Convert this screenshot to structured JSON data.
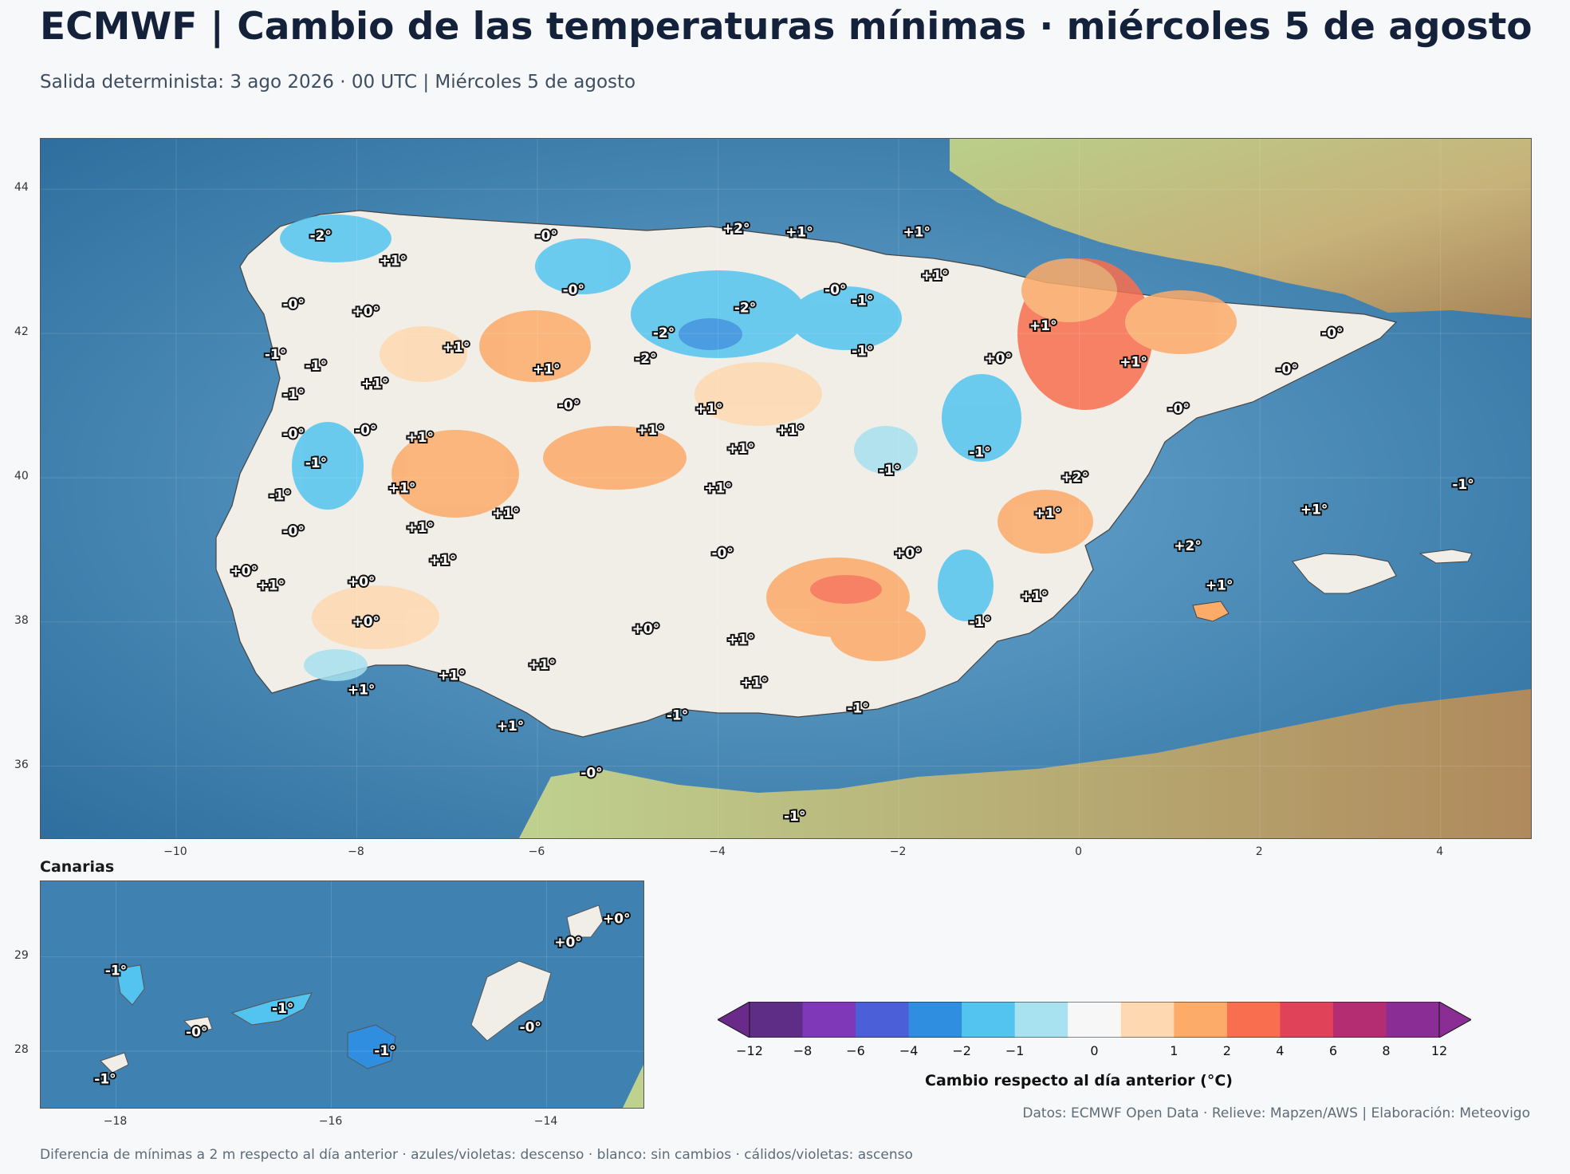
{
  "title": "ECMWF | Cambio de las temperaturas mínimas · miércoles 5 de agosto",
  "subtitle": "Salida determinista: 3 ago 2026 · 00 UTC  |  Miércoles 5 de agosto",
  "main_map": {
    "extent": {
      "lon": [
        -11.5,
        5.0
      ],
      "lat": [
        35.0,
        44.7
      ]
    },
    "lon_ticks": [
      -10,
      -8,
      -6,
      -4,
      -2,
      0,
      2,
      4
    ],
    "lat_ticks": [
      36,
      38,
      40,
      42,
      44
    ],
    "labels": [
      {
        "text": "-2°",
        "lon": -8.4,
        "lat": 43.35
      },
      {
        "text": "-0°",
        "lon": -5.9,
        "lat": 43.35
      },
      {
        "text": "+2°",
        "lon": -3.8,
        "lat": 43.45
      },
      {
        "text": "+1°",
        "lon": -3.1,
        "lat": 43.4
      },
      {
        "text": "+1°",
        "lon": -1.8,
        "lat": 43.4
      },
      {
        "text": "+1°",
        "lon": -7.6,
        "lat": 43.0
      },
      {
        "text": "+1°",
        "lon": -1.6,
        "lat": 42.8
      },
      {
        "text": "-0°",
        "lon": -5.6,
        "lat": 42.6
      },
      {
        "text": "-0°",
        "lon": -2.7,
        "lat": 42.6
      },
      {
        "text": "-1°",
        "lon": -2.4,
        "lat": 42.45
      },
      {
        "text": "-0°",
        "lon": -8.7,
        "lat": 42.4
      },
      {
        "text": "+0°",
        "lon": -7.9,
        "lat": 42.3
      },
      {
        "text": "-2°",
        "lon": -3.7,
        "lat": 42.35
      },
      {
        "text": "+1°",
        "lon": -0.4,
        "lat": 42.1
      },
      {
        "text": "-0°",
        "lon": 2.8,
        "lat": 42.0
      },
      {
        "text": "-2°",
        "lon": -4.6,
        "lat": 42.0
      },
      {
        "text": "+1°",
        "lon": -6.9,
        "lat": 41.8
      },
      {
        "text": "-1°",
        "lon": -2.4,
        "lat": 41.75
      },
      {
        "text": "-1°",
        "lon": -8.9,
        "lat": 41.7
      },
      {
        "text": "-2°",
        "lon": -4.8,
        "lat": 41.65
      },
      {
        "text": "+0°",
        "lon": -0.9,
        "lat": 41.65
      },
      {
        "text": "+1°",
        "lon": 0.6,
        "lat": 41.6
      },
      {
        "text": "-1°",
        "lon": -8.45,
        "lat": 41.55
      },
      {
        "text": "+1°",
        "lon": -5.9,
        "lat": 41.5
      },
      {
        "text": "-0°",
        "lon": 2.3,
        "lat": 41.5
      },
      {
        "text": "+1°",
        "lon": -7.8,
        "lat": 41.3
      },
      {
        "text": "-1°",
        "lon": -8.7,
        "lat": 41.15
      },
      {
        "text": "-0°",
        "lon": -5.65,
        "lat": 41.0
      },
      {
        "text": "+1°",
        "lon": -4.1,
        "lat": 40.95
      },
      {
        "text": "-0°",
        "lon": 1.1,
        "lat": 40.95
      },
      {
        "text": "-0°",
        "lon": -7.9,
        "lat": 40.65
      },
      {
        "text": "+1°",
        "lon": -4.75,
        "lat": 40.65
      },
      {
        "text": "+1°",
        "lon": -3.2,
        "lat": 40.65
      },
      {
        "text": "-0°",
        "lon": -8.7,
        "lat": 40.6
      },
      {
        "text": "+1°",
        "lon": -7.3,
        "lat": 40.55
      },
      {
        "text": "+1°",
        "lon": -3.75,
        "lat": 40.4
      },
      {
        "text": "-1°",
        "lon": -1.1,
        "lat": 40.35
      },
      {
        "text": "-1°",
        "lon": -8.45,
        "lat": 40.2
      },
      {
        "text": "-1°",
        "lon": -2.1,
        "lat": 40.1
      },
      {
        "text": "+2°",
        "lon": -0.05,
        "lat": 40.0
      },
      {
        "text": "-1°",
        "lon": 4.25,
        "lat": 39.9
      },
      {
        "text": "+1°",
        "lon": -7.5,
        "lat": 39.85
      },
      {
        "text": "+1°",
        "lon": -4.0,
        "lat": 39.85
      },
      {
        "text": "-1°",
        "lon": -8.85,
        "lat": 39.75
      },
      {
        "text": "+1°",
        "lon": 2.6,
        "lat": 39.55
      },
      {
        "text": "+1°",
        "lon": -6.35,
        "lat": 39.5
      },
      {
        "text": "+1°",
        "lon": -0.35,
        "lat": 39.5
      },
      {
        "text": "+1°",
        "lon": -7.3,
        "lat": 39.3
      },
      {
        "text": "-0°",
        "lon": -8.7,
        "lat": 39.25
      },
      {
        "text": "+2°",
        "lon": 1.2,
        "lat": 39.05
      },
      {
        "text": "-0°",
        "lon": -3.95,
        "lat": 38.95
      },
      {
        "text": "+0°",
        "lon": -1.9,
        "lat": 38.95
      },
      {
        "text": "+1°",
        "lon": -7.05,
        "lat": 38.85
      },
      {
        "text": "+0°",
        "lon": -9.25,
        "lat": 38.7
      },
      {
        "text": "+0°",
        "lon": -7.95,
        "lat": 38.55
      },
      {
        "text": "+1°",
        "lon": -8.95,
        "lat": 38.5
      },
      {
        "text": "+1°",
        "lon": 1.55,
        "lat": 38.5
      },
      {
        "text": "+1°",
        "lon": -0.5,
        "lat": 38.35
      },
      {
        "text": "+0°",
        "lon": -7.9,
        "lat": 38.0
      },
      {
        "text": "-1°",
        "lon": -1.1,
        "lat": 38.0
      },
      {
        "text": "+0°",
        "lon": -4.8,
        "lat": 37.9
      },
      {
        "text": "+1°",
        "lon": -3.75,
        "lat": 37.75
      },
      {
        "text": "+1°",
        "lon": -5.95,
        "lat": 37.4
      },
      {
        "text": "+1°",
        "lon": -6.95,
        "lat": 37.25
      },
      {
        "text": "+1°",
        "lon": -3.6,
        "lat": 37.15
      },
      {
        "text": "+1°",
        "lon": -7.95,
        "lat": 37.05
      },
      {
        "text": "-1°",
        "lon": -4.45,
        "lat": 36.7
      },
      {
        "text": "-1°",
        "lon": -2.45,
        "lat": 36.8
      },
      {
        "text": "+1°",
        "lon": -6.3,
        "lat": 36.55
      },
      {
        "text": "-0°",
        "lon": -5.4,
        "lat": 35.9
      },
      {
        "text": "-1°",
        "lon": -3.15,
        "lat": 35.3
      }
    ]
  },
  "canary_map": {
    "title": "Canarias",
    "extent": {
      "lon": [
        -18.7,
        -13.1
      ],
      "lat": [
        27.4,
        29.8
      ]
    },
    "lon_ticks": [
      -18,
      -16,
      -14
    ],
    "lat_ticks": [
      28,
      29
    ],
    "labels": [
      {
        "text": "+0°",
        "lon": -13.35,
        "lat": 29.4
      },
      {
        "text": "+0°",
        "lon": -13.8,
        "lat": 29.15
      },
      {
        "text": "-1°",
        "lon": -18.0,
        "lat": 28.85
      },
      {
        "text": "-0°",
        "lon": -17.25,
        "lat": 28.2
      },
      {
        "text": "-1°",
        "lon": -16.45,
        "lat": 28.45
      },
      {
        "text": "-0°",
        "lon": -14.15,
        "lat": 28.25
      },
      {
        "text": "-1°",
        "lon": -15.5,
        "lat": 28.0
      },
      {
        "text": "-1°",
        "lon": -18.1,
        "lat": 27.7
      }
    ]
  },
  "colorbar": {
    "label": "Cambio respecto al día anterior (°C)",
    "colors": [
      "#5e2d86",
      "#7e38b8",
      "#4a5fd8",
      "#2f8ee0",
      "#52c4ef",
      "#a8e1f0",
      "#f7f7f7",
      "#fed8b0",
      "#fcab68",
      "#f96e4e",
      "#e0425a",
      "#b42c72",
      "#8a2e96"
    ],
    "extend_low_color": "#6a2a8a",
    "extend_high_color": "#8a2e96",
    "ticks": [
      "−12",
      "−8",
      "−6",
      "−4",
      "−2",
      "−1",
      "0",
      "1",
      "2",
      "4",
      "6",
      "8",
      "12"
    ]
  },
  "credits": "Datos: ECMWF Open Data · Relieve: Mapzen/AWS  |  Elaboración: Meteovigo",
  "footnote": "Diferencia de mínimas a 2 m respecto al día anterior · azules/violetas: descenso · blanco: sin cambios · cálidos/violetas: ascenso"
}
